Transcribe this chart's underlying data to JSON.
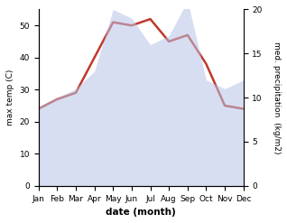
{
  "months": [
    "Jan",
    "Feb",
    "Mar",
    "Apr",
    "May",
    "Jun",
    "Jul",
    "Aug",
    "Sep",
    "Oct",
    "Nov",
    "Dec"
  ],
  "month_indices": [
    1,
    2,
    3,
    4,
    5,
    6,
    7,
    8,
    9,
    10,
    11,
    12
  ],
  "temperature": [
    24,
    27,
    29,
    40,
    51,
    50,
    52,
    45,
    47,
    38,
    25,
    24
  ],
  "precipitation": [
    9,
    10,
    11,
    13,
    20,
    19,
    16,
    17,
    21,
    12,
    11,
    12
  ],
  "temp_color": "#c0392b",
  "precip_fill_color": "#b8c4e8",
  "ylabel_left": "max temp (C)",
  "ylabel_right": "med. precipitation  (kg/m2)",
  "xlabel": "date (month)",
  "ylim_left": [
    0,
    55
  ],
  "ylim_right": [
    0,
    20
  ],
  "yticks_left": [
    0,
    10,
    20,
    30,
    40,
    50
  ],
  "yticks_right": [
    0,
    5,
    10,
    15,
    20
  ],
  "background_color": "#ffffff",
  "temp_linewidth": 1.8,
  "figsize": [
    3.18,
    2.47
  ],
  "dpi": 100
}
